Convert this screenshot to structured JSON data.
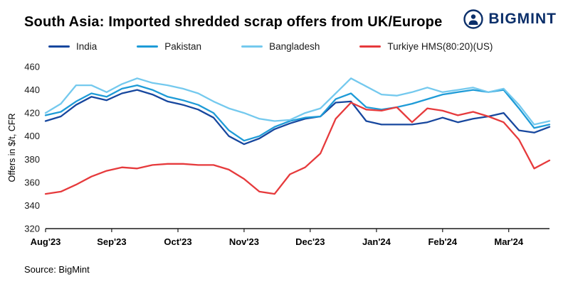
{
  "header": {
    "title": "South Asia: Imported shredded scrap offers from UK/Europe",
    "brand": "BIGMINT"
  },
  "footer": {
    "source": "Source: BigMint"
  },
  "chart_data": {
    "type": "line",
    "title": "South Asia: Imported shredded scrap offers from UK/Europe",
    "xlabel": "",
    "ylabel": "Offers in $/t, CFR",
    "ylim": [
      320,
      460
    ],
    "ytick_step": 20,
    "grid": false,
    "legend_position": "top",
    "x_range": [
      0,
      33
    ],
    "x_ticks": [
      "Aug'23",
      "Sep'23",
      "Oct'23",
      "Nov'23",
      "Dec'23",
      "Jan'24",
      "Feb'24",
      "Mar'24"
    ],
    "x_tick_positions": [
      0,
      4.33,
      8.67,
      13,
      17.33,
      21.67,
      26,
      30.33
    ],
    "axis_color": "#1a1a1a",
    "series": [
      {
        "name": "India",
        "color": "#17479E",
        "values": [
          413,
          417,
          427,
          434,
          431,
          437,
          440,
          436,
          430,
          427,
          423,
          416,
          400,
          393,
          398,
          406,
          411,
          415,
          417,
          429,
          430,
          413,
          410,
          410,
          410,
          412,
          416,
          412,
          415,
          417,
          420,
          405,
          403,
          408
        ]
      },
      {
        "name": "Pakistan",
        "color": "#1E9BD7",
        "values": [
          418,
          421,
          430,
          437,
          434,
          441,
          444,
          440,
          434,
          431,
          427,
          420,
          405,
          396,
          400,
          408,
          413,
          416,
          417,
          432,
          437,
          425,
          423,
          425,
          428,
          432,
          436,
          438,
          440,
          438,
          440,
          424,
          407,
          410
        ]
      },
      {
        "name": "Bangladesh",
        "color": "#74C9EE",
        "values": [
          420,
          428,
          444,
          444,
          438,
          445,
          450,
          446,
          444,
          441,
          437,
          430,
          424,
          420,
          415,
          413,
          414,
          420,
          424,
          437,
          450,
          443,
          436,
          435,
          438,
          442,
          438,
          440,
          442,
          438,
          441,
          427,
          410,
          413
        ]
      },
      {
        "name": "Turkiye HMS(80:20)(US)",
        "color": "#E63A3C",
        "values": [
          350,
          352,
          358,
          365,
          370,
          373,
          372,
          375,
          376,
          376,
          375,
          375,
          371,
          363,
          352,
          350,
          367,
          373,
          385,
          415,
          429,
          423,
          422,
          425,
          412,
          424,
          422,
          418,
          421,
          417,
          412,
          397,
          372,
          379
        ]
      }
    ]
  }
}
